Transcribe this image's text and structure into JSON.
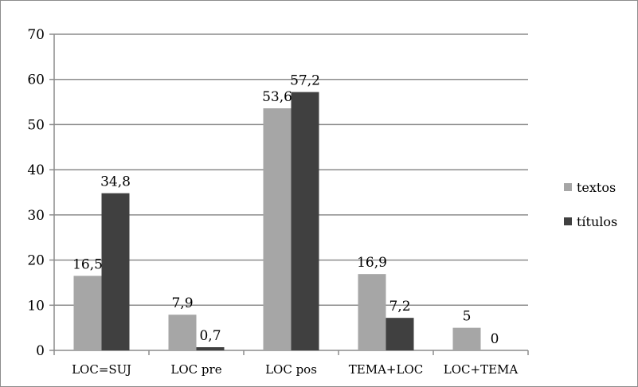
{
  "chart_data": {
    "type": "bar",
    "title": "",
    "xlabel": "",
    "ylabel": "",
    "categories": [
      "LOC=SUJ",
      "LOC pre",
      "LOC pos",
      "TEMA+LOC",
      "LOC+TEMA"
    ],
    "series": [
      {
        "name": "textos",
        "values": [
          16.5,
          7.9,
          53.6,
          16.9,
          5
        ],
        "labels": [
          "16,5",
          "7,9",
          "53,6",
          "16,9",
          "5"
        ],
        "color": "#a6a6a6"
      },
      {
        "name": "títulos",
        "values": [
          34.8,
          0.7,
          57.2,
          7.2,
          0
        ],
        "labels": [
          "34,8",
          "0,7",
          "57,2",
          "7,2",
          "0"
        ],
        "color": "#404040"
      }
    ],
    "ylim": [
      0,
      70
    ],
    "yticks": [
      0,
      10,
      20,
      30,
      40,
      50,
      60,
      70
    ],
    "grid": true,
    "legend": "right"
  }
}
